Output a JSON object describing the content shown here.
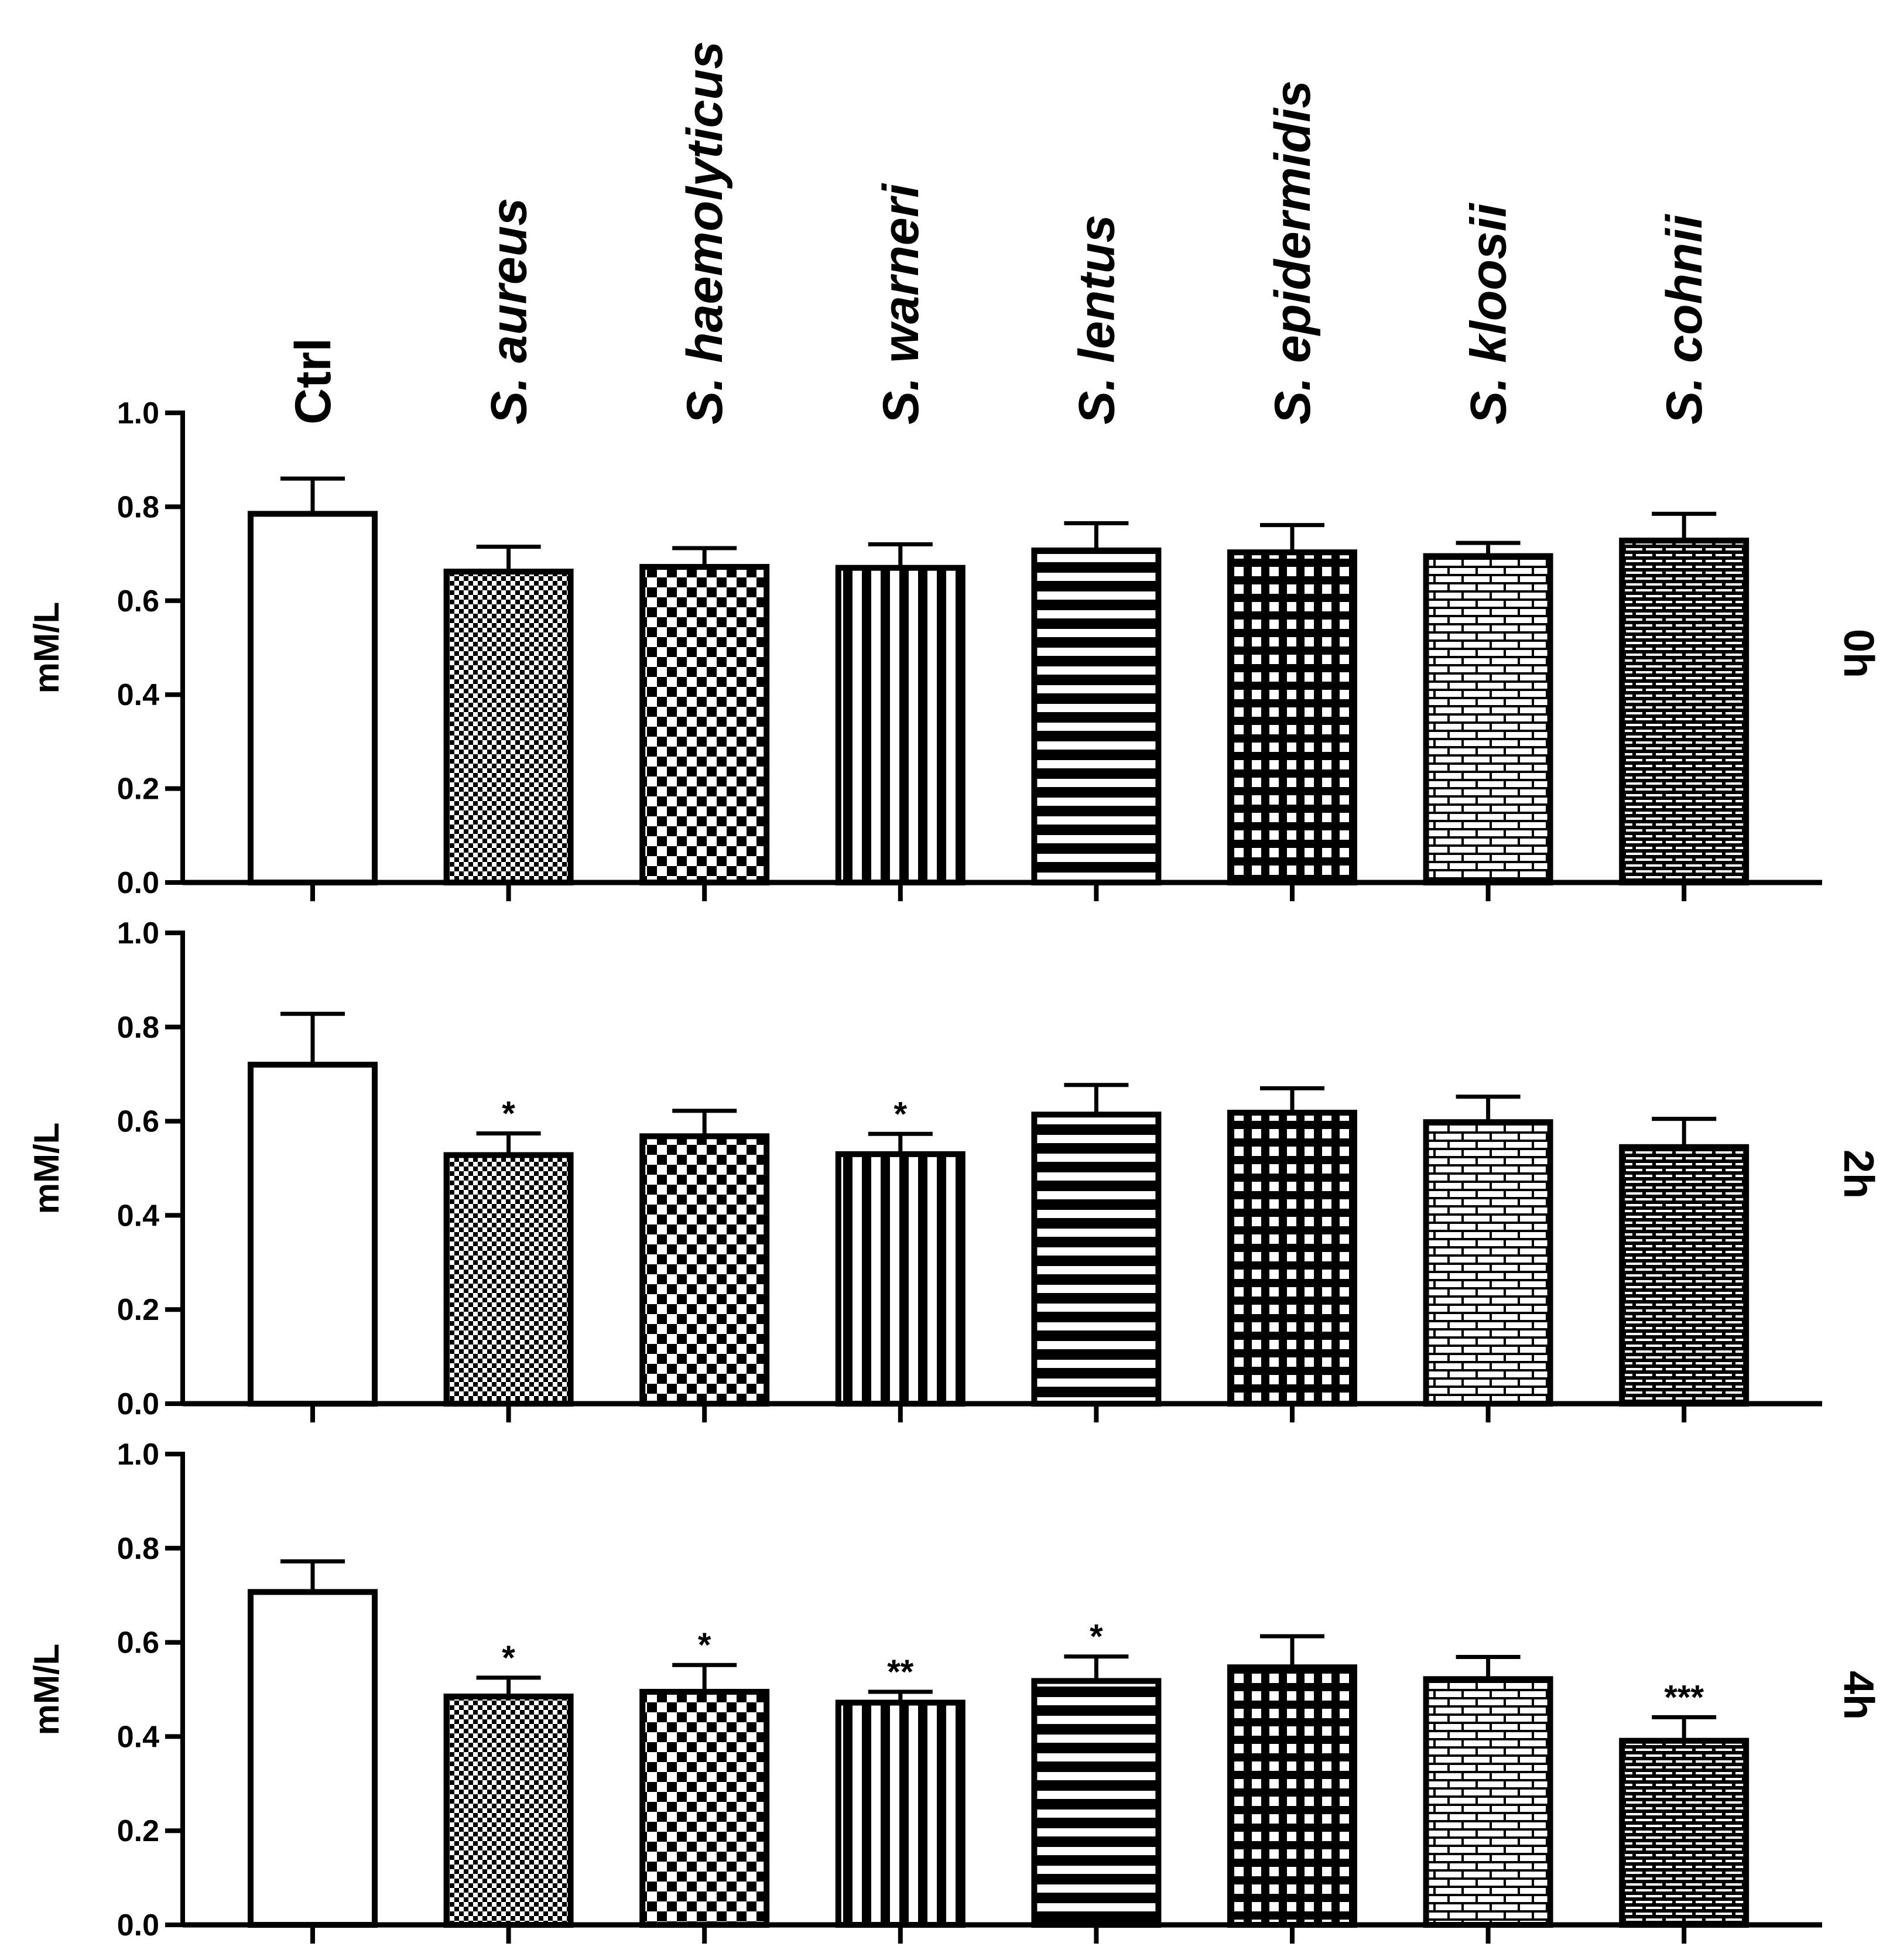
{
  "chart_data": {
    "type": "bar",
    "categories": [
      "Ctrl",
      "S. aureus",
      "S. haemolyticus",
      "S. warneri",
      "S. lentus",
      "S. epidermidis",
      "S. kloosii",
      "S. cohnii"
    ],
    "category_italic": [
      false,
      true,
      true,
      true,
      true,
      true,
      true,
      true
    ],
    "patterns": [
      "none",
      "fine-check",
      "checker",
      "vstripes",
      "hstripes",
      "grid",
      "brick",
      "brick-dense"
    ],
    "ylim": [
      0,
      1.0
    ],
    "yticks": [
      "0.0",
      "0.2",
      "0.4",
      "0.6",
      "0.8",
      "1.0"
    ],
    "ylabel": "mM/L",
    "panels": [
      {
        "label": "0h",
        "values": [
          0.785,
          0.662,
          0.672,
          0.67,
          0.707,
          0.703,
          0.695,
          0.728
        ],
        "errors": [
          0.075,
          0.053,
          0.04,
          0.05,
          0.058,
          0.058,
          0.028,
          0.057
        ],
        "significance": [
          "",
          "",
          "",
          "",
          "",
          "",
          "",
          ""
        ]
      },
      {
        "label": "2h",
        "values": [
          0.72,
          0.528,
          0.568,
          0.53,
          0.614,
          0.618,
          0.598,
          0.545
        ],
        "errors": [
          0.108,
          0.046,
          0.054,
          0.043,
          0.063,
          0.052,
          0.054,
          0.06
        ],
        "significance": [
          "",
          "*",
          "",
          "*",
          "",
          "",
          "",
          ""
        ]
      },
      {
        "label": "4h",
        "values": [
          0.707,
          0.485,
          0.495,
          0.472,
          0.518,
          0.547,
          0.522,
          0.391
        ],
        "errors": [
          0.065,
          0.04,
          0.057,
          0.023,
          0.052,
          0.066,
          0.047,
          0.05
        ],
        "significance": [
          "",
          "*",
          "*",
          "**",
          "*",
          "",
          "",
          "***"
        ]
      }
    ]
  }
}
